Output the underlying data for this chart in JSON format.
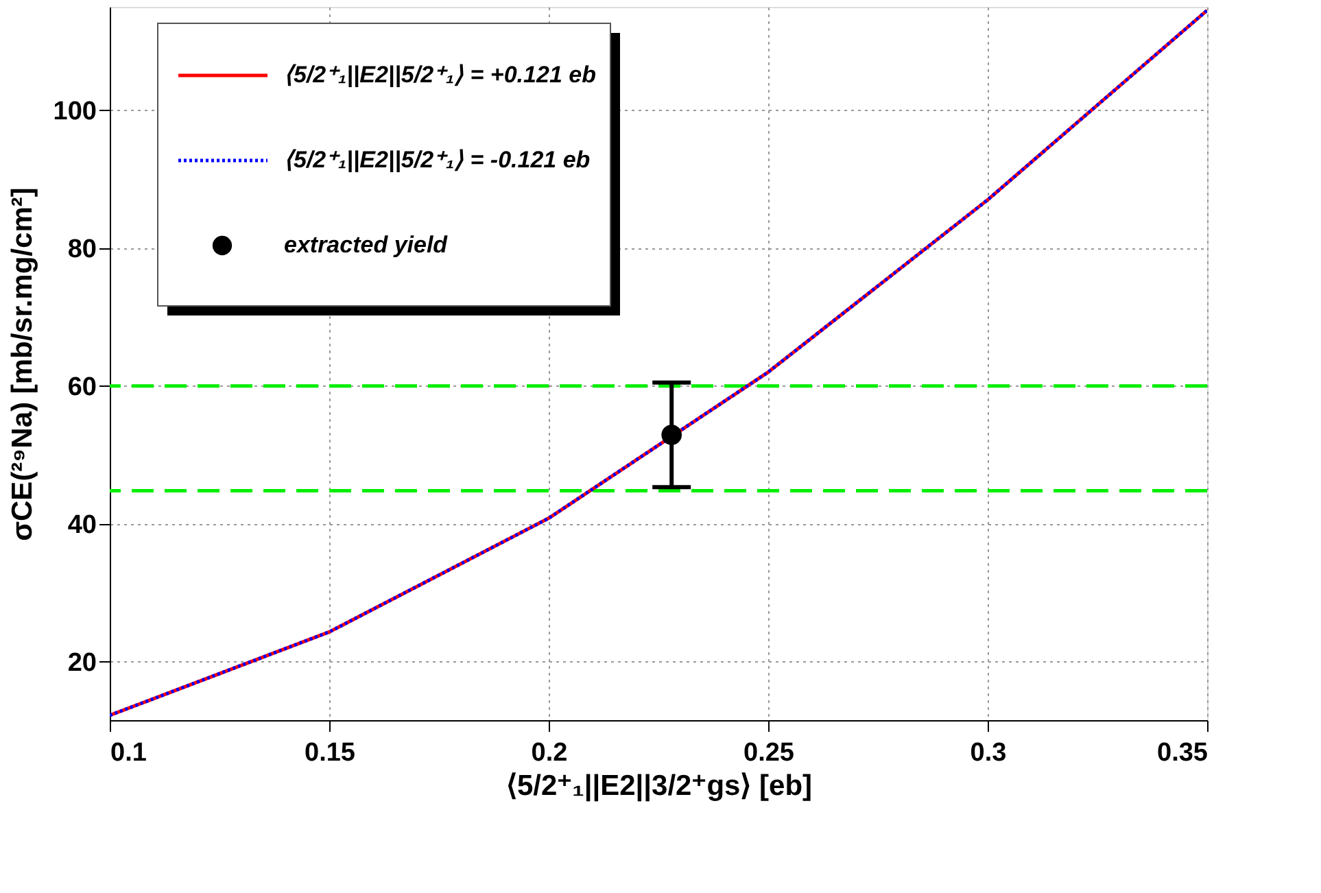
{
  "chart_data": {
    "type": "line",
    "xlabel": "⟨5/2⁺₁||E2||3/2⁺gs⟩ [eb]",
    "ylabel": "σCE(²⁹Na) [mb/sr.mg/cm²]",
    "xlim": [
      0.1,
      0.35
    ],
    "xticks": [
      0.1,
      0.15,
      0.2,
      0.25,
      0.3,
      0.35
    ],
    "ylim": [
      11.5,
      115
    ],
    "yticks": [
      20,
      40,
      60,
      80,
      100
    ],
    "grid": true,
    "legend": "top left",
    "series": [
      {
        "name": "⟨5/2⁺₁||E2||5/2⁺₁⟩ = +0.121 eb",
        "color": "#ff0000",
        "line_style": "solid",
        "x": [
          0.1,
          0.15,
          0.2,
          0.25,
          0.3,
          0.35
        ],
        "values": [
          12.2,
          24.3,
          40.8,
          62,
          87,
          114.5
        ]
      },
      {
        "name": "⟨5/2⁺₁||E2||5/2⁺₁⟩ = -0.121 eb",
        "color": "#0000ff",
        "line_style": "dotted",
        "x": [
          0.1,
          0.15,
          0.2,
          0.25,
          0.3,
          0.35
        ],
        "values": [
          12.2,
          24.3,
          40.8,
          62,
          87,
          114.5
        ]
      },
      {
        "name": "extracted yield",
        "type": "scatter",
        "color": "#000000",
        "marker": "circle",
        "x": [
          0.228
        ],
        "values": [
          52.9
        ],
        "errors": [
          [
            45.3,
            60.5
          ]
        ]
      }
    ],
    "ref_lines": [
      {
        "axis": "y",
        "value": 60,
        "color": "#00ee00",
        "line_style": "dashed"
      },
      {
        "axis": "y",
        "value": 44.8,
        "color": "#00ee00",
        "line_style": "dashed"
      }
    ]
  }
}
